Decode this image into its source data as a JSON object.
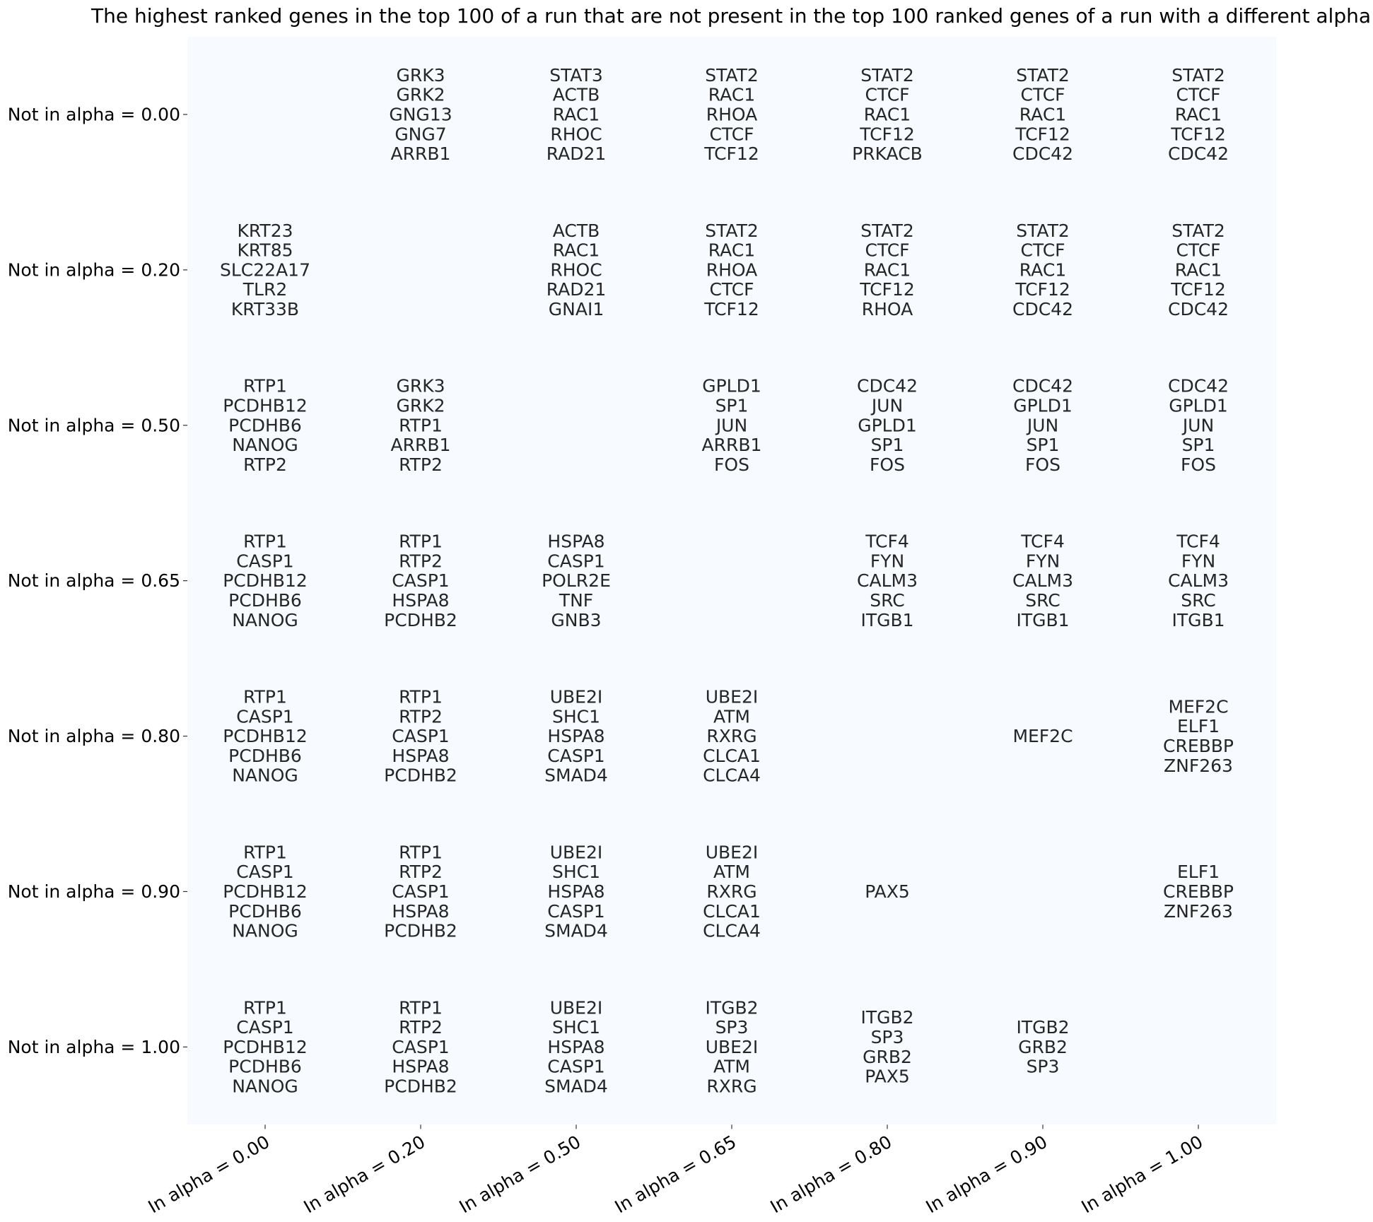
{
  "colors": {
    "cell_background": "#f7fbff",
    "text": "#262626",
    "tick": "#333333"
  },
  "chart_data": {
    "type": "table",
    "title": "The highest ranked genes in the top 100 of a run that are not present in the top 100 ranked genes of a run with a different alpha",
    "row_labels": [
      "Not in alpha = 0.00",
      "Not in alpha = 0.20",
      "Not in alpha = 0.50",
      "Not in alpha = 0.65",
      "Not in alpha = 0.80",
      "Not in alpha = 0.90",
      "Not in alpha = 1.00"
    ],
    "col_labels": [
      "In alpha = 0.00",
      "In alpha = 0.20",
      "In alpha = 0.50",
      "In alpha = 0.65",
      "In alpha = 0.80",
      "In alpha = 0.90",
      "In alpha = 1.00"
    ],
    "cells": [
      [
        [],
        [
          "GRK3",
          "GRK2",
          "GNG13",
          "GNG7",
          "ARRB1"
        ],
        [
          "STAT3",
          "ACTB",
          "RAC1",
          "RHOC",
          "RAD21"
        ],
        [
          "STAT2",
          "RAC1",
          "RHOA",
          "CTCF",
          "TCF12"
        ],
        [
          "STAT2",
          "CTCF",
          "RAC1",
          "TCF12",
          "PRKACB"
        ],
        [
          "STAT2",
          "CTCF",
          "RAC1",
          "TCF12",
          "CDC42"
        ],
        [
          "STAT2",
          "CTCF",
          "RAC1",
          "TCF12",
          "CDC42"
        ]
      ],
      [
        [
          "KRT23",
          "KRT85",
          "SLC22A17",
          "TLR2",
          "KRT33B"
        ],
        [],
        [
          "ACTB",
          "RAC1",
          "RHOC",
          "RAD21",
          "GNAI1"
        ],
        [
          "STAT2",
          "RAC1",
          "RHOA",
          "CTCF",
          "TCF12"
        ],
        [
          "STAT2",
          "CTCF",
          "RAC1",
          "TCF12",
          "RHOA"
        ],
        [
          "STAT2",
          "CTCF",
          "RAC1",
          "TCF12",
          "CDC42"
        ],
        [
          "STAT2",
          "CTCF",
          "RAC1",
          "TCF12",
          "CDC42"
        ]
      ],
      [
        [
          "RTP1",
          "PCDHB12",
          "PCDHB6",
          "NANOG",
          "RTP2"
        ],
        [
          "GRK3",
          "GRK2",
          "RTP1",
          "ARRB1",
          "RTP2"
        ],
        [],
        [
          "GPLD1",
          "SP1",
          "JUN",
          "ARRB1",
          "FOS"
        ],
        [
          "CDC42",
          "JUN",
          "GPLD1",
          "SP1",
          "FOS"
        ],
        [
          "CDC42",
          "GPLD1",
          "JUN",
          "SP1",
          "FOS"
        ],
        [
          "CDC42",
          "GPLD1",
          "JUN",
          "SP1",
          "FOS"
        ]
      ],
      [
        [
          "RTP1",
          "CASP1",
          "PCDHB12",
          "PCDHB6",
          "NANOG"
        ],
        [
          "RTP1",
          "RTP2",
          "CASP1",
          "HSPA8",
          "PCDHB2"
        ],
        [
          "HSPA8",
          "CASP1",
          "POLR2E",
          "TNF",
          "GNB3"
        ],
        [],
        [
          "TCF4",
          "FYN",
          "CALM3",
          "SRC",
          "ITGB1"
        ],
        [
          "TCF4",
          "FYN",
          "CALM3",
          "SRC",
          "ITGB1"
        ],
        [
          "TCF4",
          "FYN",
          "CALM3",
          "SRC",
          "ITGB1"
        ]
      ],
      [
        [
          "RTP1",
          "CASP1",
          "PCDHB12",
          "PCDHB6",
          "NANOG"
        ],
        [
          "RTP1",
          "RTP2",
          "CASP1",
          "HSPA8",
          "PCDHB2"
        ],
        [
          "UBE2I",
          "SHC1",
          "HSPA8",
          "CASP1",
          "SMAD4"
        ],
        [
          "UBE2I",
          "ATM",
          "RXRG",
          "CLCA1",
          "CLCA4"
        ],
        [],
        [
          "MEF2C"
        ],
        [
          "MEF2C",
          "ELF1",
          "CREBBP",
          "ZNF263"
        ]
      ],
      [
        [
          "RTP1",
          "CASP1",
          "PCDHB12",
          "PCDHB6",
          "NANOG"
        ],
        [
          "RTP1",
          "RTP2",
          "CASP1",
          "HSPA8",
          "PCDHB2"
        ],
        [
          "UBE2I",
          "SHC1",
          "HSPA8",
          "CASP1",
          "SMAD4"
        ],
        [
          "UBE2I",
          "ATM",
          "RXRG",
          "CLCA1",
          "CLCA4"
        ],
        [
          "PAX5"
        ],
        [],
        [
          "ELF1",
          "CREBBP",
          "ZNF263"
        ]
      ],
      [
        [
          "RTP1",
          "CASP1",
          "PCDHB12",
          "PCDHB6",
          "NANOG"
        ],
        [
          "RTP1",
          "RTP2",
          "CASP1",
          "HSPA8",
          "PCDHB2"
        ],
        [
          "UBE2I",
          "SHC1",
          "HSPA8",
          "CASP1",
          "SMAD4"
        ],
        [
          "ITGB2",
          "SP3",
          "UBE2I",
          "ATM",
          "RXRG"
        ],
        [
          "ITGB2",
          "SP3",
          "GRB2",
          "PAX5"
        ],
        [
          "ITGB2",
          "GRB2",
          "SP3"
        ],
        []
      ]
    ]
  }
}
